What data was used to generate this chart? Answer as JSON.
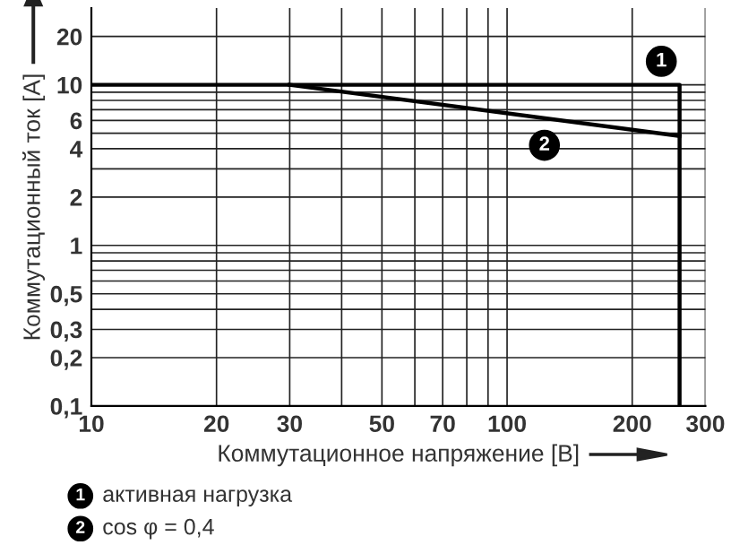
{
  "chart_data": {
    "type": "line",
    "xlabel": "Коммутационное напряжение [В]",
    "ylabel": "Коммутационный ток [A]",
    "log": "xy",
    "xlim": [
      10,
      300
    ],
    "xticks": [
      10,
      20,
      30,
      {
        "value": 40,
        "label": null
      },
      50,
      {
        "value": 60,
        "label": null
      },
      70,
      {
        "value": 80,
        "label": null
      },
      {
        "value": 90,
        "label": null
      },
      100,
      200,
      300
    ],
    "ylim": [
      0.1,
      30
    ],
    "yticks": [
      {
        "value": 0.1,
        "label": "0,1"
      },
      {
        "value": 0.2,
        "label": "0,2"
      },
      {
        "value": 0.3,
        "label": "0,3"
      },
      {
        "value": 0.4,
        "label": null
      },
      {
        "value": 0.5,
        "label": "0,5"
      },
      {
        "value": 0.6,
        "label": null
      },
      {
        "value": 0.7,
        "label": null
      },
      {
        "value": 0.8,
        "label": null
      },
      {
        "value": 0.9,
        "label": null
      },
      1,
      2,
      {
        "value": 3,
        "label": null
      },
      4,
      {
        "value": 5,
        "label": null
      },
      6,
      {
        "value": 7,
        "label": null
      },
      {
        "value": 8,
        "label": null
      },
      {
        "value": 9,
        "label": null
      },
      10,
      20
    ],
    "grid": true,
    "legend": "bottom left",
    "line_style": "solid",
    "series": [
      {
        "name": "активная нагрузка",
        "color": "#000000",
        "x": [
          10,
          260,
          260
        ],
        "values": [
          10,
          10,
          0.1
        ]
      },
      {
        "name": "cos φ = 0,4",
        "color": "#000000",
        "x": [
          30,
          260
        ],
        "values": [
          10,
          4.8
        ]
      }
    ],
    "annotations": [
      {
        "text": "1",
        "x": 235,
        "y": 14
      },
      {
        "text": "2",
        "x": 123,
        "y": 4.2
      }
    ]
  }
}
